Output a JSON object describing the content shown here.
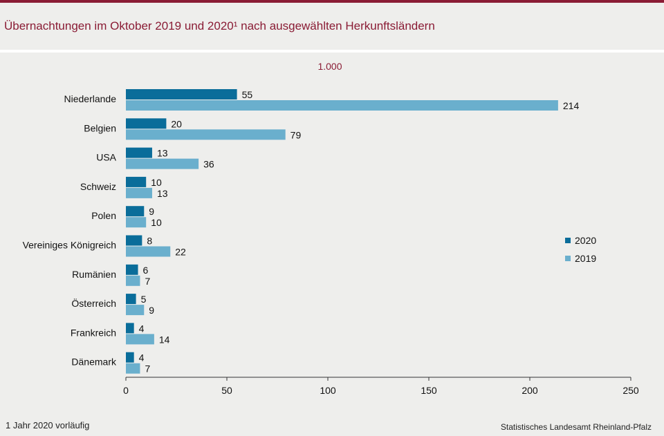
{
  "title": "Übernachtungen im Oktober 2019 und 2020¹ nach ausgewählten Herkunftsländern",
  "footnote": "1 Jahr 2020 vorläufig",
  "source": "Statistisches Landesamt Rheinland-Pfalz",
  "colors": {
    "series_2020": "#0a6d9a",
    "series_2019": "#6aafcd",
    "accent": "#8a1c35"
  },
  "chart_data": {
    "type": "bar",
    "orientation": "horizontal",
    "unit_label": "1.000",
    "categories": [
      "Niederlande",
      "Belgien",
      "USA",
      "Schweiz",
      "Polen",
      "Vereiniges Königreich",
      "Rumänien",
      "Österreich",
      "Frankreich",
      "Dänemark"
    ],
    "series": [
      {
        "name": "2020",
        "values": [
          55,
          20,
          13,
          10,
          9,
          8,
          6,
          5,
          4,
          4
        ]
      },
      {
        "name": "2019",
        "values": [
          214,
          79,
          36,
          13,
          10,
          22,
          7,
          9,
          14,
          7
        ]
      }
    ],
    "xlim": [
      0,
      250
    ],
    "xticks": [
      0,
      50,
      100,
      150,
      200,
      250
    ],
    "grid": false,
    "legend_position": "right"
  }
}
